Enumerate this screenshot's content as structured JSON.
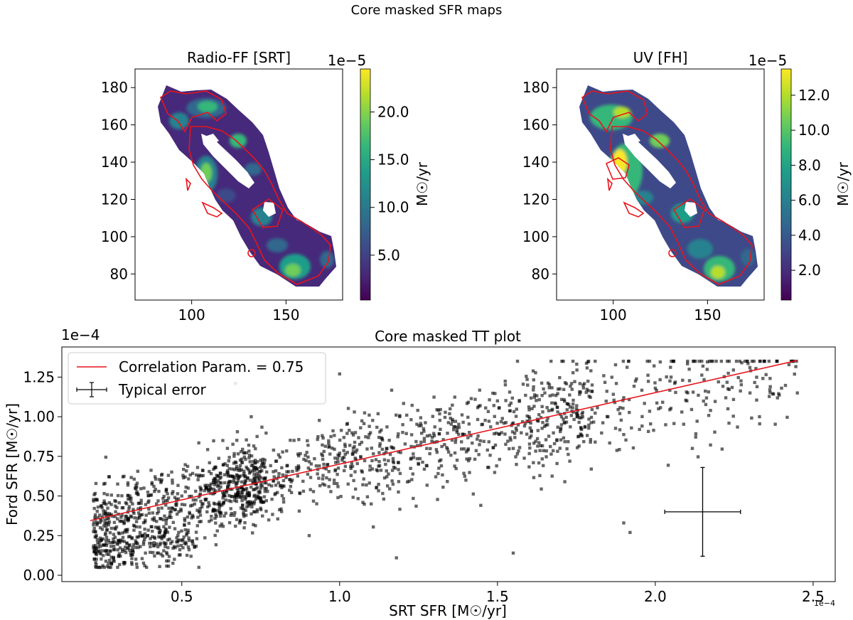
{
  "figure_title": "Core masked SFR maps",
  "colors": {
    "contour": "#e8141c",
    "fit_line": "#e8141c",
    "points": "#000000",
    "viridis": [
      "#440154",
      "#482878",
      "#3e4989",
      "#31688e",
      "#26828e",
      "#1f9e89",
      "#35b779",
      "#6ece58",
      "#b5de2b",
      "#fde725"
    ]
  },
  "chart_data": [
    {
      "type": "heatmap",
      "title": "Radio-FF [SRT]",
      "colormap": "viridis",
      "x_ticks": [
        "100",
        "150"
      ],
      "y_ticks": [
        "80",
        "100",
        "120",
        "140",
        "160",
        "180"
      ],
      "xlim": [
        70,
        180
      ],
      "ylim": [
        66,
        190
      ],
      "colorbar": {
        "label": "M☉/yr",
        "offset_text": "1e−5",
        "range": [
          0.3,
          24.5
        ],
        "ticks": [
          {
            "value": 5.0,
            "label": "5.0"
          },
          {
            "value": 10.0,
            "label": "10.0"
          },
          {
            "value": 15.0,
            "label": "15.0"
          },
          {
            "value": 20.0,
            "label": "20.0"
          }
        ]
      }
    },
    {
      "type": "heatmap",
      "title": "UV [FH]",
      "colormap": "viridis",
      "x_ticks": [
        "100",
        "150"
      ],
      "y_ticks": [
        "80",
        "100",
        "120",
        "140",
        "160",
        "180"
      ],
      "xlim": [
        70,
        180
      ],
      "ylim": [
        66,
        190
      ],
      "colorbar": {
        "label": "M☉/yr",
        "offset_text": "1e−5",
        "range": [
          0.3,
          13.5
        ],
        "ticks": [
          {
            "value": 2.0,
            "label": "2.0"
          },
          {
            "value": 4.0,
            "label": "4.0"
          },
          {
            "value": 6.0,
            "label": "6.0"
          },
          {
            "value": 8.0,
            "label": "8.0"
          },
          {
            "value": 10.0,
            "label": "10.0"
          },
          {
            "value": 12.0,
            "label": "12.0"
          }
        ]
      }
    },
    {
      "type": "scatter",
      "title": "Core masked TT plot",
      "xlabel": "SRT SFR [M☉/yr]",
      "ylabel": "Ford SFR [M☉/yr]",
      "x_offset_text": "1e−4",
      "y_offset_text": "1e−4",
      "xlim": [
        0.12,
        2.57
      ],
      "ylim": [
        -0.04,
        1.44
      ],
      "x_ticks": [
        {
          "value": 0.5,
          "label": "0.5"
        },
        {
          "value": 1.0,
          "label": "1.0"
        },
        {
          "value": 1.5,
          "label": "1.5"
        },
        {
          "value": 2.0,
          "label": "2.0"
        },
        {
          "value": 2.5,
          "label": "2.5"
        }
      ],
      "y_ticks": [
        {
          "value": 0.0,
          "label": "0.00"
        },
        {
          "value": 0.25,
          "label": "0.25"
        },
        {
          "value": 0.5,
          "label": "0.50"
        },
        {
          "value": 0.75,
          "label": "0.75"
        },
        {
          "value": 1.0,
          "label": "1.00"
        },
        {
          "value": 1.25,
          "label": "1.25"
        }
      ],
      "fit_line": {
        "x": [
          0.21,
          2.45
        ],
        "y": [
          0.345,
          1.355
        ]
      },
      "typical_error": {
        "x": 2.15,
        "y": 0.4,
        "xerr": 0.12,
        "yerr": 0.28
      },
      "legend": {
        "position": "upper left",
        "entries": [
          "Correlation Param. = 0.75",
          "Typical error"
        ]
      },
      "points_sampled": [
        [
          0.23,
          0.13
        ],
        [
          0.26,
          0.38
        ],
        [
          0.3,
          0.22
        ],
        [
          0.33,
          0.48
        ],
        [
          0.35,
          0.31
        ],
        [
          0.38,
          0.55
        ],
        [
          0.4,
          0.18
        ],
        [
          0.42,
          0.45
        ],
        [
          0.45,
          0.2
        ],
        [
          0.47,
          0.6
        ],
        [
          0.5,
          0.5
        ],
        [
          0.52,
          0.27
        ],
        [
          0.55,
          0.68
        ],
        [
          0.58,
          0.4
        ],
        [
          0.6,
          0.6
        ],
        [
          0.63,
          0.85
        ],
        [
          0.65,
          0.47
        ],
        [
          0.7,
          0.62
        ],
        [
          0.72,
          1.0
        ],
        [
          0.75,
          0.55
        ],
        [
          0.8,
          0.72
        ],
        [
          0.85,
          0.6
        ],
        [
          0.9,
          0.82
        ],
        [
          0.95,
          0.7
        ],
        [
          1.0,
          0.77
        ],
        [
          1.05,
          0.9
        ],
        [
          1.1,
          0.45
        ],
        [
          1.15,
          0.8
        ],
        [
          1.2,
          0.95
        ],
        [
          1.25,
          0.7
        ],
        [
          1.3,
          0.88
        ],
        [
          1.35,
          1.05
        ],
        [
          1.4,
          0.6
        ],
        [
          1.45,
          0.95
        ],
        [
          1.5,
          1.1
        ],
        [
          1.55,
          0.8
        ],
        [
          1.6,
          1.0
        ],
        [
          1.65,
          1.15
        ],
        [
          1.7,
          0.92
        ],
        [
          1.75,
          1.05
        ],
        [
          1.8,
          1.2
        ],
        [
          1.85,
          1.0
        ],
        [
          1.9,
          1.12
        ],
        [
          1.95,
          0.92
        ],
        [
          2.0,
          1.18
        ],
        [
          2.05,
          1.25
        ],
        [
          2.1,
          1.1
        ],
        [
          2.2,
          1.22
        ],
        [
          2.3,
          1.15
        ],
        [
          2.4,
          1.18
        ],
        [
          2.45,
          1.15
        ],
        [
          1.92,
          0.27
        ],
        [
          1.9,
          0.33
        ],
        [
          0.67,
          1.21
        ],
        [
          1.0,
          1.27
        ],
        [
          2.33,
          1.0
        ],
        [
          2.23,
          1.05
        ],
        [
          1.55,
          0.14
        ],
        [
          1.18,
          0.11
        ],
        [
          0.25,
          0.06
        ]
      ],
      "approx_point_count": 1900
    }
  ]
}
